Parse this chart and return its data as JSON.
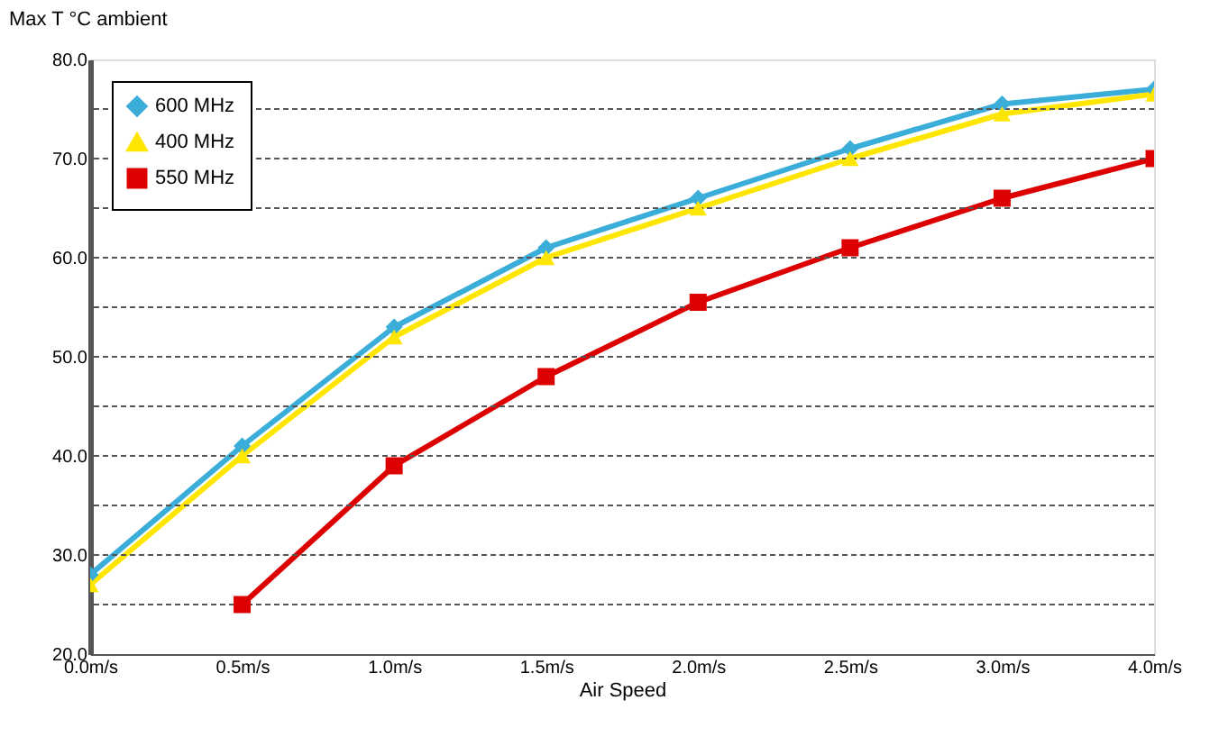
{
  "chart_data": {
    "type": "line",
    "title": "Max T °C ambient",
    "xlabel": "Air Speed",
    "categories": [
      "0.0m/s",
      "0.5m/s",
      "1.0m/s",
      "1.5m/s",
      "2.0m/s",
      "2.5m/s",
      "3.0m/s",
      "4.0m/s"
    ],
    "series": [
      {
        "name": "600 MHz",
        "color": "#3aaed8",
        "marker": "diamond",
        "values": [
          28,
          41,
          53,
          61,
          66,
          71,
          75.5,
          77
        ]
      },
      {
        "name": "400 MHz",
        "color": "#ffe600",
        "marker": "triangle",
        "values": [
          27,
          40,
          52,
          60,
          65,
          70,
          74.5,
          76.5
        ]
      },
      {
        "name": "550 MHz",
        "color": "#dd0000",
        "marker": "square",
        "values": [
          null,
          25,
          39,
          48,
          55.5,
          61,
          66,
          70
        ]
      }
    ],
    "ylim": [
      20,
      80
    ],
    "yticks": [
      {
        "value": 20,
        "label": "20.0"
      },
      {
        "value": 25,
        "label": null
      },
      {
        "value": 30,
        "label": "30.0"
      },
      {
        "value": 35,
        "label": null
      },
      {
        "value": 40,
        "label": "40.0"
      },
      {
        "value": 45,
        "label": null
      },
      {
        "value": 50,
        "label": "50.0"
      },
      {
        "value": 55,
        "label": null
      },
      {
        "value": 60,
        "label": "60.0"
      },
      {
        "value": 65,
        "label": null
      },
      {
        "value": 70,
        "label": "70.0"
      },
      {
        "value": 75,
        "label": null
      },
      {
        "value": 80,
        "label": "80.0"
      }
    ],
    "grid": "y",
    "legend": "top left",
    "line_style": "solid"
  }
}
